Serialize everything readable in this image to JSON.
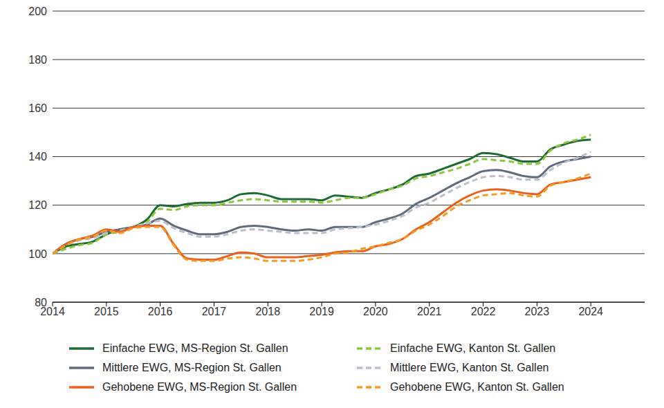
{
  "chart_data": {
    "type": "line",
    "marker": "none",
    "grid": true,
    "legend": "bottom",
    "x": [
      2014,
      2014.25,
      2014.5,
      2014.75,
      2015,
      2015.25,
      2015.5,
      2015.75,
      2016,
      2016.25,
      2016.5,
      2016.75,
      2017,
      2017.25,
      2017.5,
      2017.75,
      2018,
      2018.25,
      2018.5,
      2018.75,
      2019,
      2019.25,
      2019.5,
      2019.75,
      2020,
      2020.25,
      2020.5,
      2020.75,
      2021,
      2021.25,
      2021.5,
      2021.75,
      2022,
      2022.25,
      2022.5,
      2022.75,
      2023,
      2023.25,
      2023.5,
      2023.75,
      2024
    ],
    "xlim": [
      2014,
      2025
    ],
    "xticks": [
      2014,
      2015,
      2016,
      2017,
      2018,
      2019,
      2020,
      2021,
      2022,
      2023,
      2024
    ],
    "ylim": [
      80,
      200
    ],
    "yticks": [
      80,
      100,
      120,
      140,
      160,
      180,
      200
    ],
    "series": [
      {
        "name": "Einfache EWG, MS-Region St. Gallen",
        "color": "#1d6b33",
        "line_style": "solid",
        "values": [
          100,
          103,
          104,
          105,
          108,
          110,
          111,
          114,
          120,
          119.5,
          120.5,
          121,
          121,
          122,
          124.5,
          125,
          124,
          122.5,
          122.5,
          122.5,
          122,
          124,
          123.5,
          123,
          125,
          126.5,
          128.5,
          132,
          133,
          135,
          137,
          139,
          141.5,
          141,
          139.5,
          138,
          138,
          143,
          145,
          146.5,
          147
        ]
      },
      {
        "name": "Einfache EWG, Kanton St. Gallen",
        "color": "#8cc63f",
        "line_style": "dashed",
        "values": [
          100,
          102,
          103.5,
          104.5,
          108,
          109,
          111,
          113,
          118.5,
          118,
          119.5,
          120,
          120,
          121,
          122,
          122.5,
          122,
          121.5,
          121.5,
          121.5,
          121,
          122,
          123,
          123,
          124.5,
          126.5,
          128,
          131,
          132,
          133.5,
          135,
          137,
          139,
          138.5,
          138,
          137,
          137,
          142.5,
          145.5,
          147,
          149
        ]
      },
      {
        "name": "Mittlere EWG, MS-Region St. Gallen",
        "color": "#5f6b7b",
        "line_style": "solid",
        "values": [
          100,
          104,
          106,
          107,
          109,
          110,
          111,
          112,
          114.5,
          111.5,
          109.5,
          108,
          108,
          109,
          111,
          111.5,
          111,
          110,
          109.5,
          110,
          109.5,
          111,
          111,
          111,
          113,
          114.5,
          116.5,
          120.5,
          123,
          126,
          129,
          131.5,
          134,
          134.5,
          133.5,
          132,
          131.5,
          136,
          138,
          139,
          140
        ]
      },
      {
        "name": "Mittlere EWG, Kanton St. Gallen",
        "color": "#b9bfcc",
        "line_style": "dashed",
        "values": [
          100,
          103.5,
          105.5,
          106.5,
          108.5,
          109.5,
          111,
          112.5,
          113.5,
          110.5,
          108.5,
          107,
          107,
          108,
          109.5,
          110,
          109.5,
          109,
          108.5,
          108.5,
          108.5,
          110,
          110.5,
          111,
          112,
          113.5,
          115.5,
          119,
          121,
          124,
          127,
          129.5,
          131.5,
          132,
          131.5,
          130.5,
          130.5,
          134.5,
          137.5,
          139.5,
          142
        ]
      },
      {
        "name": "Gehobene EWG, MS-Region St. Gallen",
        "color": "#e8601c",
        "line_style": "solid",
        "values": [
          100,
          104,
          106,
          107.5,
          110,
          109,
          111,
          111.5,
          111.5,
          104,
          98,
          97.5,
          97.5,
          99,
          100.5,
          100,
          98.5,
          98.5,
          98.5,
          99,
          99.5,
          100.5,
          101,
          101,
          103,
          104,
          106,
          110,
          113,
          117,
          121,
          124,
          126,
          126.5,
          126,
          125,
          124.5,
          128.5,
          129.5,
          130.5,
          131.5
        ]
      },
      {
        "name": "Gehobene EWG, Kanton St. Gallen",
        "color": "#f39c25",
        "line_style": "dashed",
        "values": [
          100,
          103.5,
          106,
          107,
          109.5,
          108.5,
          110.5,
          111,
          111,
          103.5,
          97.5,
          97,
          97,
          98,
          98.5,
          98,
          97,
          97,
          97,
          97.5,
          98.5,
          100,
          100.5,
          102,
          103,
          104.5,
          106,
          109.5,
          112,
          115.5,
          119.5,
          122,
          124,
          124.5,
          125,
          124,
          123.5,
          128,
          129.5,
          131,
          133
        ]
      }
    ]
  }
}
